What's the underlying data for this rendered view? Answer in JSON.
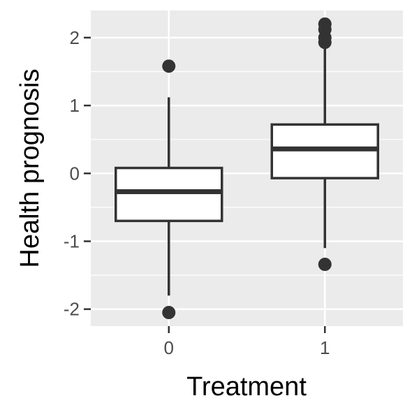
{
  "chart_data": {
    "type": "boxplot",
    "title": "",
    "xlabel": "Treatment",
    "ylabel": "Health prognosis",
    "categories": [
      "0",
      "1"
    ],
    "ylim": [
      -2.25,
      2.4
    ],
    "yticks": [
      -2,
      -1,
      0,
      1,
      2
    ],
    "ytick_labels": [
      "-2",
      "-1",
      "0",
      "1",
      "2"
    ],
    "grid": true,
    "legend": "none",
    "boxes": [
      {
        "category": "0",
        "whisker_low": -1.8,
        "q1": -0.7,
        "median": -0.27,
        "q3": 0.08,
        "whisker_high": 1.12,
        "outliers": [
          1.58,
          -2.05
        ]
      },
      {
        "category": "1",
        "whisker_low": -1.1,
        "q1": -0.07,
        "median": 0.36,
        "q3": 0.72,
        "whisker_high": 1.84,
        "outliers": [
          2.2,
          2.12,
          2.0,
          1.93,
          -1.34
        ]
      }
    ],
    "colors": {
      "panel": "#ebebeb",
      "grid": "#ffffff",
      "box_fill": "#ffffff",
      "box_line": "#333333"
    }
  }
}
